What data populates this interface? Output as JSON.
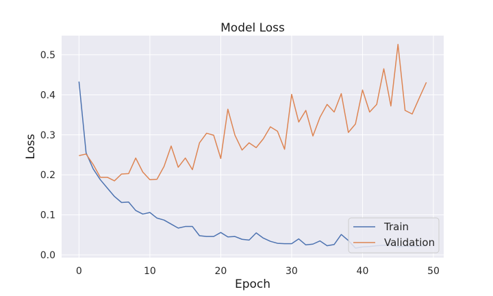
{
  "chart_data": {
    "type": "line",
    "title": "Model Loss",
    "xlabel": "Epoch",
    "ylabel": "Loss",
    "xlim": [
      -2.45,
      51.45
    ],
    "ylim": [
      -0.0068,
      0.5478
    ],
    "xticks": [
      0,
      10,
      20,
      30,
      40,
      50
    ],
    "yticks": [
      0.0,
      0.1,
      0.2,
      0.3,
      0.4,
      0.5
    ],
    "xtick_labels": [
      "0",
      "10",
      "20",
      "30",
      "40",
      "50"
    ],
    "ytick_labels": [
      "0.0",
      "0.1",
      "0.2",
      "0.3",
      "0.4",
      "0.5"
    ],
    "grid": true,
    "legend_position": "lower-right",
    "x": [
      0,
      1,
      2,
      3,
      4,
      5,
      6,
      7,
      8,
      9,
      10,
      11,
      12,
      13,
      14,
      15,
      16,
      17,
      18,
      19,
      20,
      21,
      22,
      23,
      24,
      25,
      26,
      27,
      28,
      29,
      30,
      31,
      32,
      33,
      34,
      35,
      36,
      37,
      38,
      39,
      40,
      41,
      42,
      43,
      44,
      45,
      46,
      47,
      48,
      49
    ],
    "series": [
      {
        "name": "Train",
        "color": "#4c72b0",
        "values": [
          0.433,
          0.255,
          0.215,
          0.188,
          0.167,
          0.146,
          0.131,
          0.132,
          0.111,
          0.102,
          0.106,
          0.092,
          0.087,
          0.077,
          0.067,
          0.071,
          0.071,
          0.048,
          0.046,
          0.046,
          0.056,
          0.045,
          0.046,
          0.039,
          0.037,
          0.055,
          0.042,
          0.034,
          0.029,
          0.028,
          0.028,
          0.04,
          0.025,
          0.027,
          0.035,
          0.023,
          0.026,
          0.051,
          0.036,
          0.017,
          0.02,
          0.021,
          0.023,
          0.024,
          0.025,
          0.02,
          0.022,
          0.021,
          0.022,
          0.023
        ]
      },
      {
        "name": "Validation",
        "color": "#dd8452",
        "values": [
          0.248,
          0.252,
          0.226,
          0.194,
          0.194,
          0.185,
          0.202,
          0.203,
          0.242,
          0.207,
          0.188,
          0.189,
          0.221,
          0.272,
          0.219,
          0.242,
          0.213,
          0.28,
          0.304,
          0.299,
          0.241,
          0.364,
          0.299,
          0.262,
          0.28,
          0.268,
          0.29,
          0.32,
          0.309,
          0.264,
          0.401,
          0.332,
          0.361,
          0.297,
          0.344,
          0.376,
          0.357,
          0.403,
          0.306,
          0.327,
          0.412,
          0.357,
          0.376,
          0.465,
          0.372,
          0.526,
          0.361,
          0.352,
          0.392,
          0.431
        ]
      }
    ]
  }
}
